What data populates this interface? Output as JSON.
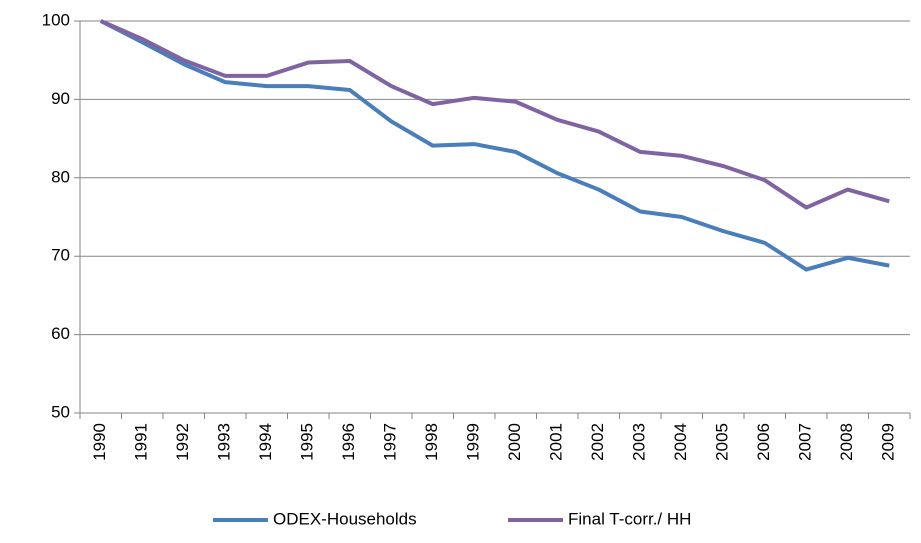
{
  "chart_data": {
    "type": "line",
    "categories": [
      "1990",
      "1991",
      "1992",
      "1993",
      "1994",
      "1995",
      "1996",
      "1997",
      "1998",
      "1999",
      "2000",
      "2001",
      "2002",
      "2003",
      "2004",
      "2005",
      "2006",
      "2007",
      "2008",
      "2009"
    ],
    "series": [
      {
        "name": "ODEX-Households",
        "color": "#4a7ebb",
        "values": [
          100,
          97.3,
          94.5,
          92.2,
          91.7,
          91.7,
          91.2,
          87.2,
          84.1,
          84.3,
          83.3,
          80.6,
          78.5,
          75.7,
          75.0,
          73.2,
          71.7,
          68.3,
          69.8,
          68.8
        ]
      },
      {
        "name": "Final T-corr./ HH",
        "color": "#8064a2",
        "values": [
          100,
          97.7,
          95.0,
          93.0,
          93.0,
          94.7,
          94.9,
          91.7,
          89.4,
          90.2,
          89.7,
          87.4,
          85.9,
          83.3,
          82.8,
          81.5,
          79.7,
          76.2,
          78.5,
          77.0
        ]
      }
    ],
    "ylim": [
      50,
      100
    ],
    "yticks": [
      50,
      60,
      70,
      80,
      90,
      100
    ],
    "grid": true,
    "legend": "bottom"
  }
}
